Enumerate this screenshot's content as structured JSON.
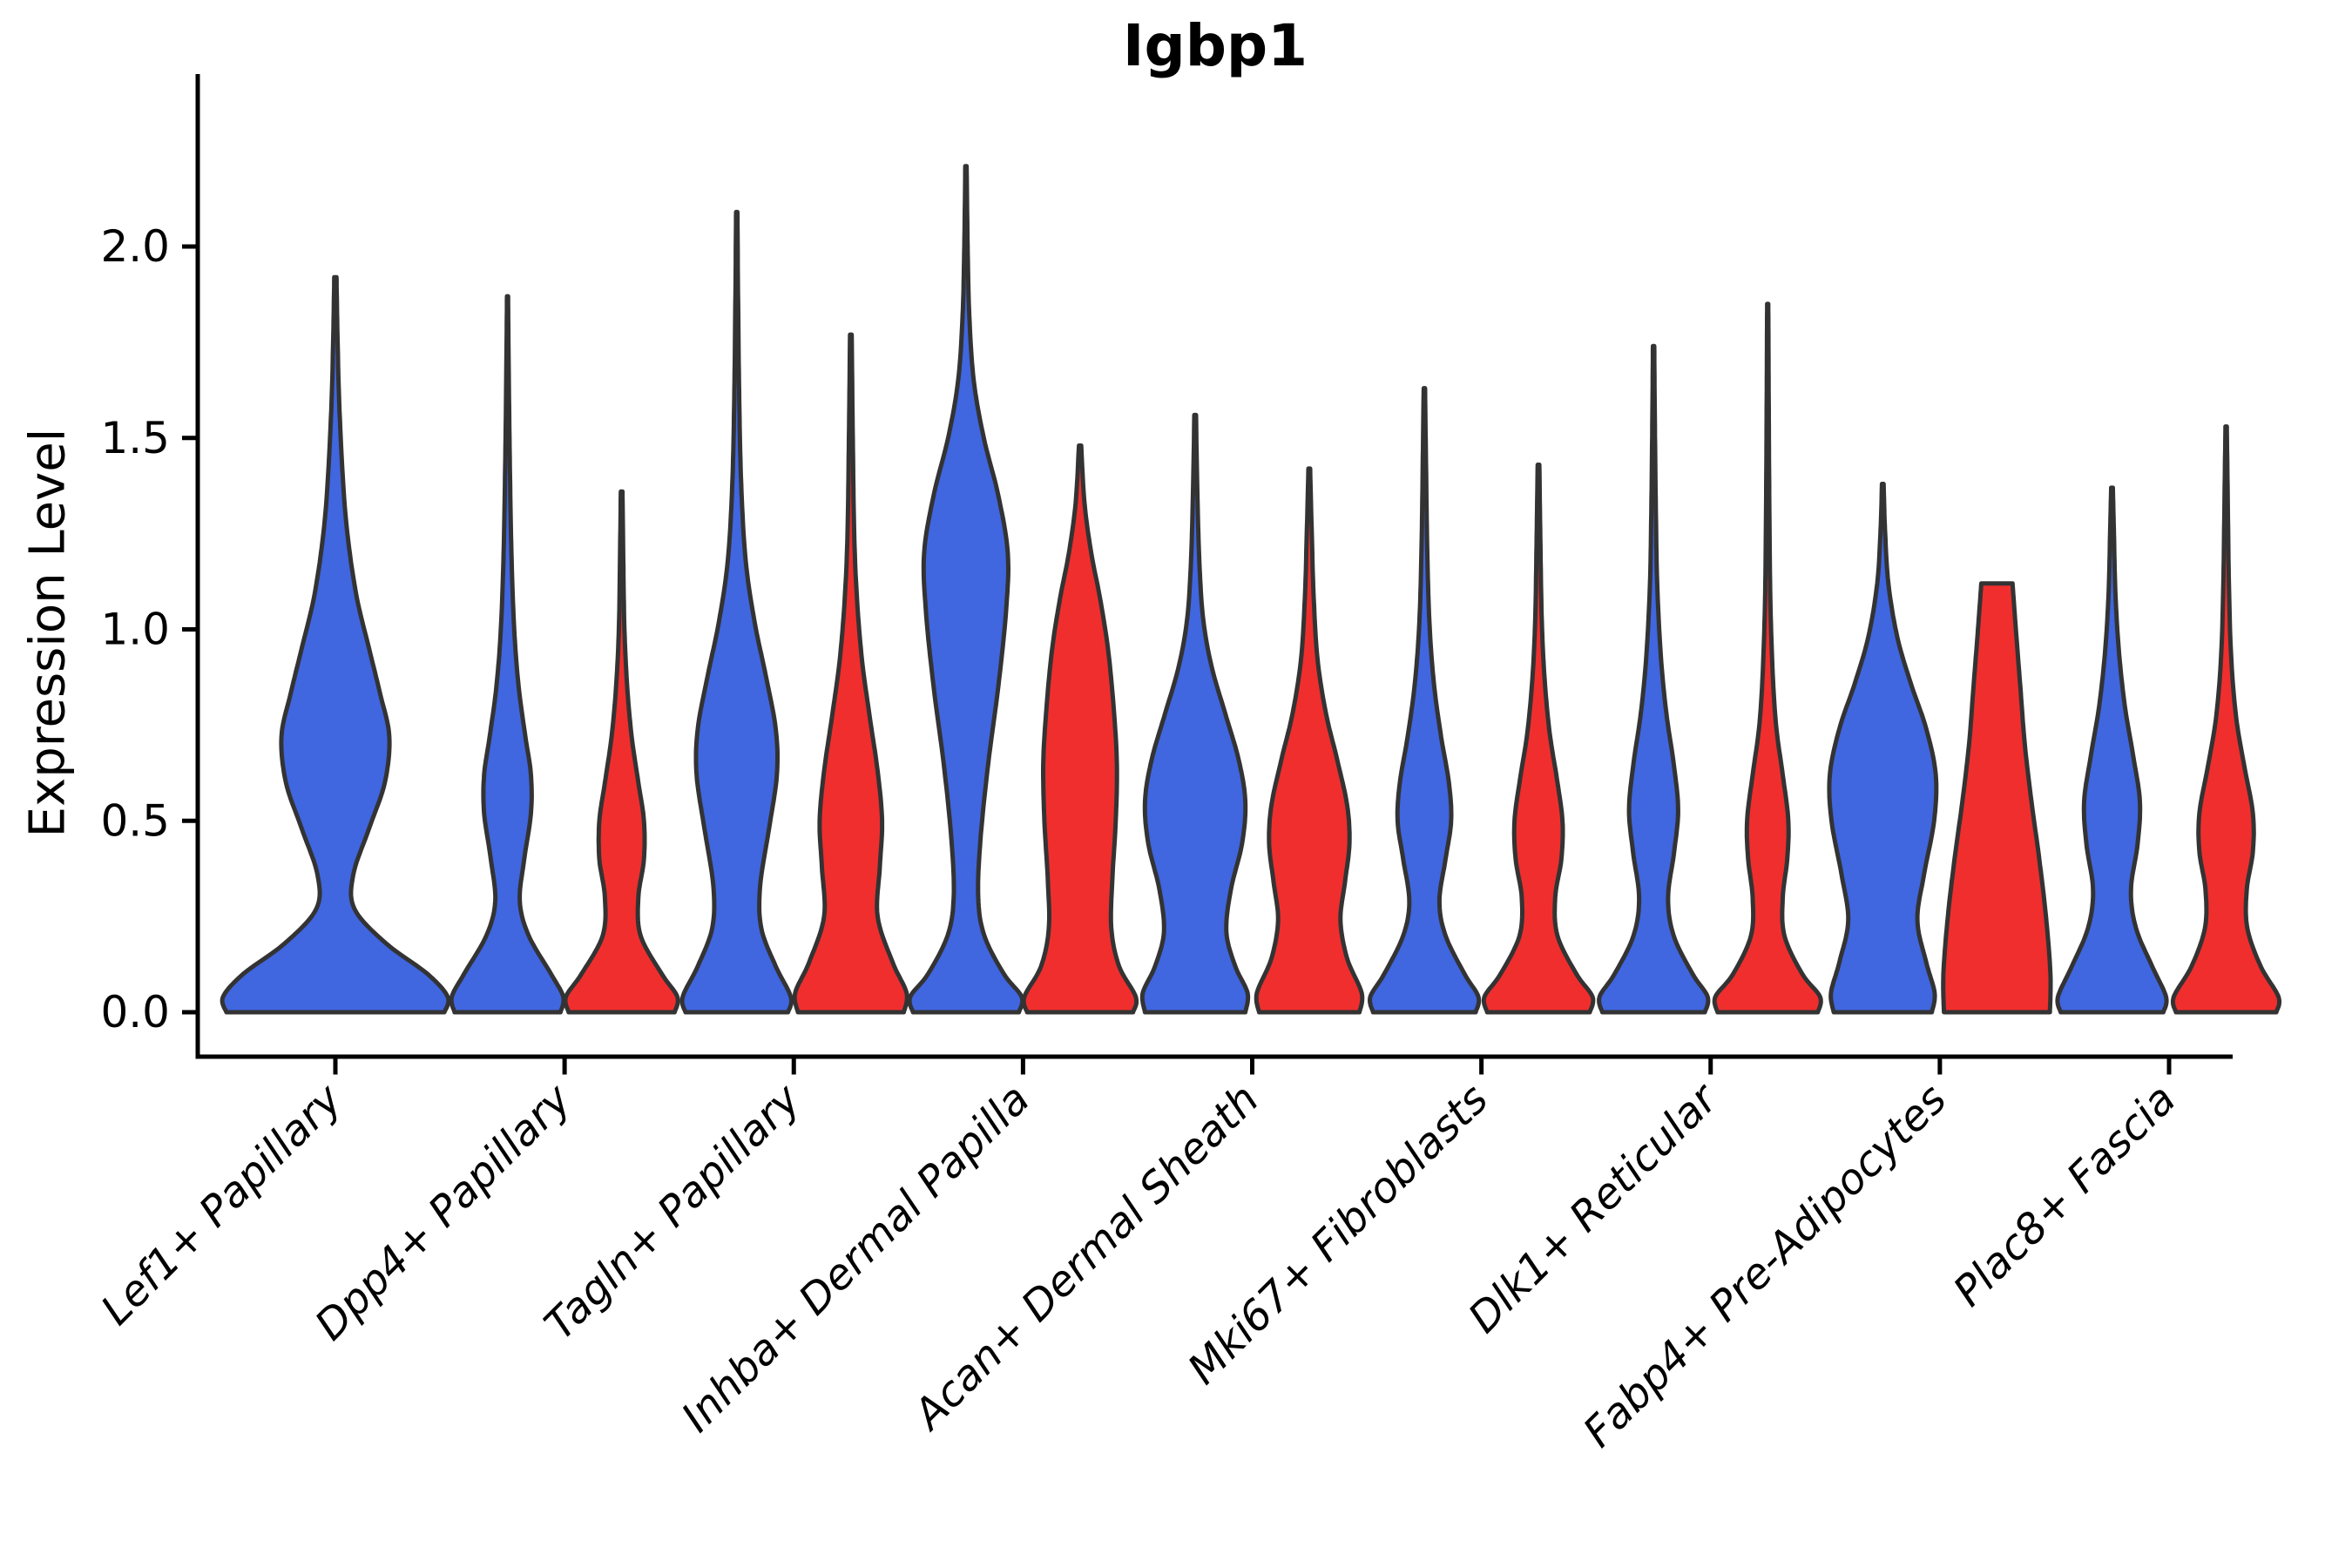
{
  "title": "Igbp1",
  "chart_data": {
    "type": "violin",
    "title": "Igbp1",
    "xlabel": "",
    "ylabel": "Expression Level",
    "legend": "none",
    "grid": false,
    "y_ticks": [
      "0.0",
      "0.5",
      "1.0",
      "1.5",
      "2.0"
    ],
    "y_tick_values": [
      0.0,
      0.5,
      1.0,
      1.5,
      2.0
    ],
    "ylim": [
      -0.11,
      2.45
    ],
    "categories": [
      "Lef1+ Papillary",
      "Dpp4+ Papillary",
      "Tagln+ Papillary",
      "Inhba+ Dermal Papilla",
      "Acan+ Dermal Sheath",
      "Mki67+ Fibroblasts",
      "Dlk1+ Reticular",
      "Fabp4+ Pre-Adipocytes",
      "Plac8+ Fascia"
    ],
    "colors": {
      "blue": "#4066E0",
      "red": "#F02E2E",
      "outline": "#333333",
      "axis": "#000000"
    },
    "series": [
      {
        "name": "blue",
        "max_expression": [
          1.92,
          1.87,
          2.09,
          2.21,
          1.56,
          1.63,
          1.74,
          1.38,
          1.37
        ]
      },
      {
        "name": "red",
        "max_expression": [
          null,
          1.36,
          1.77,
          1.48,
          1.42,
          1.43,
          1.85,
          1.12,
          1.53
        ]
      }
    ],
    "violins": [
      {
        "category_index": 0,
        "category": "Lef1+ Papillary",
        "side": "blue",
        "single": true,
        "max": 1.92,
        "profile": [
          [
            0,
            0.97
          ],
          [
            0.04,
            1.0
          ],
          [
            0.1,
            0.82
          ],
          [
            0.18,
            0.45
          ],
          [
            0.27,
            0.17
          ],
          [
            0.36,
            0.16
          ],
          [
            0.48,
            0.3
          ],
          [
            0.6,
            0.44
          ],
          [
            0.72,
            0.48
          ],
          [
            0.83,
            0.4
          ],
          [
            0.95,
            0.3
          ],
          [
            1.1,
            0.18
          ],
          [
            1.3,
            0.09
          ],
          [
            1.55,
            0.04
          ],
          [
            1.75,
            0.02
          ],
          [
            1.92,
            0.01
          ]
        ]
      },
      {
        "category_index": 1,
        "category": "Dpp4+ Papillary",
        "side": "blue",
        "max": 1.87,
        "profile": [
          [
            0,
            0.95
          ],
          [
            0.04,
            1.0
          ],
          [
            0.1,
            0.78
          ],
          [
            0.2,
            0.38
          ],
          [
            0.29,
            0.22
          ],
          [
            0.4,
            0.3
          ],
          [
            0.52,
            0.42
          ],
          [
            0.62,
            0.42
          ],
          [
            0.72,
            0.32
          ],
          [
            0.85,
            0.2
          ],
          [
            1.0,
            0.12
          ],
          [
            1.2,
            0.07
          ],
          [
            1.45,
            0.04
          ],
          [
            1.7,
            0.02
          ],
          [
            1.87,
            0.01
          ]
        ]
      },
      {
        "category_index": 1,
        "category": "Dpp4+ Papillary",
        "side": "red",
        "max": 1.36,
        "profile": [
          [
            0,
            0.95
          ],
          [
            0.04,
            1.0
          ],
          [
            0.1,
            0.72
          ],
          [
            0.2,
            0.34
          ],
          [
            0.3,
            0.3
          ],
          [
            0.4,
            0.4
          ],
          [
            0.5,
            0.4
          ],
          [
            0.6,
            0.3
          ],
          [
            0.72,
            0.18
          ],
          [
            0.85,
            0.1
          ],
          [
            1.0,
            0.05
          ],
          [
            1.18,
            0.03
          ],
          [
            1.36,
            0.015
          ]
        ]
      },
      {
        "category_index": 2,
        "category": "Tagln+ Papillary",
        "side": "blue",
        "max": 2.09,
        "profile": [
          [
            0,
            0.92
          ],
          [
            0.04,
            0.97
          ],
          [
            0.12,
            0.7
          ],
          [
            0.22,
            0.44
          ],
          [
            0.33,
            0.42
          ],
          [
            0.48,
            0.58
          ],
          [
            0.62,
            0.72
          ],
          [
            0.74,
            0.7
          ],
          [
            0.88,
            0.52
          ],
          [
            1.02,
            0.32
          ],
          [
            1.18,
            0.16
          ],
          [
            1.38,
            0.08
          ],
          [
            1.6,
            0.045
          ],
          [
            1.85,
            0.025
          ],
          [
            2.09,
            0.012
          ]
        ]
      },
      {
        "category_index": 2,
        "category": "Tagln+ Papillary",
        "side": "red",
        "max": 1.77,
        "profile": [
          [
            0,
            0.95
          ],
          [
            0.05,
            1.0
          ],
          [
            0.13,
            0.75
          ],
          [
            0.25,
            0.48
          ],
          [
            0.38,
            0.52
          ],
          [
            0.5,
            0.56
          ],
          [
            0.63,
            0.48
          ],
          [
            0.77,
            0.34
          ],
          [
            0.92,
            0.2
          ],
          [
            1.08,
            0.11
          ],
          [
            1.25,
            0.06
          ],
          [
            1.5,
            0.035
          ],
          [
            1.77,
            0.015
          ]
        ]
      },
      {
        "category_index": 3,
        "category": "Inhba+ Dermal Papilla",
        "side": "blue",
        "max": 2.21,
        "profile": [
          [
            0,
            0.95
          ],
          [
            0.04,
            1.0
          ],
          [
            0.1,
            0.68
          ],
          [
            0.2,
            0.33
          ],
          [
            0.3,
            0.22
          ],
          [
            0.45,
            0.26
          ],
          [
            0.65,
            0.4
          ],
          [
            0.85,
            0.58
          ],
          [
            1.05,
            0.72
          ],
          [
            1.2,
            0.75
          ],
          [
            1.35,
            0.58
          ],
          [
            1.5,
            0.32
          ],
          [
            1.65,
            0.14
          ],
          [
            1.82,
            0.06
          ],
          [
            2.0,
            0.03
          ],
          [
            2.21,
            0.012
          ]
        ]
      },
      {
        "category_index": 3,
        "category": "Inhba+ Dermal Papilla",
        "side": "red",
        "max": 1.48,
        "profile": [
          [
            0,
            0.95
          ],
          [
            0.04,
            1.0
          ],
          [
            0.12,
            0.7
          ],
          [
            0.22,
            0.56
          ],
          [
            0.35,
            0.58
          ],
          [
            0.5,
            0.64
          ],
          [
            0.65,
            0.66
          ],
          [
            0.8,
            0.6
          ],
          [
            0.95,
            0.5
          ],
          [
            1.08,
            0.36
          ],
          [
            1.2,
            0.2
          ],
          [
            1.33,
            0.08
          ],
          [
            1.48,
            0.02
          ]
        ]
      },
      {
        "category_index": 4,
        "category": "Acan+ Dermal Sheath",
        "side": "blue",
        "max": 1.56,
        "profile": [
          [
            0,
            0.9
          ],
          [
            0.05,
            0.94
          ],
          [
            0.12,
            0.72
          ],
          [
            0.21,
            0.56
          ],
          [
            0.32,
            0.64
          ],
          [
            0.44,
            0.84
          ],
          [
            0.55,
            0.9
          ],
          [
            0.66,
            0.78
          ],
          [
            0.78,
            0.54
          ],
          [
            0.9,
            0.3
          ],
          [
            1.02,
            0.15
          ],
          [
            1.16,
            0.08
          ],
          [
            1.35,
            0.04
          ],
          [
            1.56,
            0.015
          ]
        ]
      },
      {
        "category_index": 4,
        "category": "Acan+ Dermal Sheath",
        "side": "red",
        "max": 1.42,
        "profile": [
          [
            0,
            0.9
          ],
          [
            0.05,
            0.94
          ],
          [
            0.14,
            0.68
          ],
          [
            0.24,
            0.56
          ],
          [
            0.34,
            0.64
          ],
          [
            0.44,
            0.72
          ],
          [
            0.54,
            0.68
          ],
          [
            0.66,
            0.5
          ],
          [
            0.78,
            0.3
          ],
          [
            0.92,
            0.15
          ],
          [
            1.08,
            0.08
          ],
          [
            1.25,
            0.045
          ],
          [
            1.42,
            0.015
          ]
        ]
      },
      {
        "category_index": 5,
        "category": "Mki67+ Fibroblasts",
        "side": "blue",
        "max": 1.63,
        "profile": [
          [
            0,
            0.92
          ],
          [
            0.04,
            0.97
          ],
          [
            0.1,
            0.72
          ],
          [
            0.2,
            0.38
          ],
          [
            0.29,
            0.27
          ],
          [
            0.4,
            0.38
          ],
          [
            0.5,
            0.48
          ],
          [
            0.6,
            0.44
          ],
          [
            0.72,
            0.3
          ],
          [
            0.86,
            0.17
          ],
          [
            1.02,
            0.09
          ],
          [
            1.22,
            0.05
          ],
          [
            1.45,
            0.028
          ],
          [
            1.63,
            0.012
          ]
        ]
      },
      {
        "category_index": 5,
        "category": "Mki67+ Fibroblasts",
        "side": "red",
        "max": 1.43,
        "profile": [
          [
            0,
            0.92
          ],
          [
            0.04,
            0.97
          ],
          [
            0.1,
            0.68
          ],
          [
            0.2,
            0.34
          ],
          [
            0.3,
            0.3
          ],
          [
            0.4,
            0.41
          ],
          [
            0.5,
            0.43
          ],
          [
            0.61,
            0.33
          ],
          [
            0.73,
            0.2
          ],
          [
            0.87,
            0.11
          ],
          [
            1.02,
            0.06
          ],
          [
            1.22,
            0.035
          ],
          [
            1.43,
            0.015
          ]
        ]
      },
      {
        "category_index": 6,
        "category": "Dlk1+ Reticular",
        "side": "blue",
        "max": 1.74,
        "profile": [
          [
            0,
            0.92
          ],
          [
            0.04,
            0.97
          ],
          [
            0.1,
            0.7
          ],
          [
            0.2,
            0.36
          ],
          [
            0.3,
            0.26
          ],
          [
            0.42,
            0.37
          ],
          [
            0.53,
            0.44
          ],
          [
            0.65,
            0.36
          ],
          [
            0.78,
            0.23
          ],
          [
            0.93,
            0.13
          ],
          [
            1.12,
            0.065
          ],
          [
            1.32,
            0.04
          ],
          [
            1.55,
            0.022
          ],
          [
            1.74,
            0.012
          ]
        ]
      },
      {
        "category_index": 6,
        "category": "Dlk1+ Reticular",
        "side": "red",
        "max": 1.85,
        "profile": [
          [
            0,
            0.9
          ],
          [
            0.04,
            0.94
          ],
          [
            0.1,
            0.62
          ],
          [
            0.2,
            0.3
          ],
          [
            0.3,
            0.27
          ],
          [
            0.4,
            0.35
          ],
          [
            0.5,
            0.37
          ],
          [
            0.62,
            0.27
          ],
          [
            0.75,
            0.15
          ],
          [
            0.9,
            0.085
          ],
          [
            1.1,
            0.045
          ],
          [
            1.35,
            0.028
          ],
          [
            1.6,
            0.018
          ],
          [
            1.85,
            0.01
          ]
        ]
      },
      {
        "category_index": 7,
        "category": "Fabp4+ Pre-Adipocytes",
        "side": "blue",
        "max": 1.38,
        "profile": [
          [
            0,
            0.88
          ],
          [
            0.05,
            0.93
          ],
          [
            0.13,
            0.78
          ],
          [
            0.24,
            0.62
          ],
          [
            0.36,
            0.74
          ],
          [
            0.5,
            0.92
          ],
          [
            0.62,
            0.95
          ],
          [
            0.74,
            0.78
          ],
          [
            0.86,
            0.5
          ],
          [
            0.98,
            0.26
          ],
          [
            1.12,
            0.1
          ],
          [
            1.26,
            0.04
          ],
          [
            1.38,
            0.015
          ]
        ]
      },
      {
        "category_index": 7,
        "category": "Fabp4+ Pre-Adipocytes",
        "side": "red",
        "max": 1.12,
        "flat_top": true,
        "profile": [
          [
            0,
            0.95
          ],
          [
            0.1,
            0.96
          ],
          [
            0.25,
            0.88
          ],
          [
            0.4,
            0.76
          ],
          [
            0.55,
            0.62
          ],
          [
            0.7,
            0.5
          ],
          [
            0.85,
            0.42
          ],
          [
            1.0,
            0.34
          ],
          [
            1.12,
            0.28
          ]
        ]
      },
      {
        "category_index": 8,
        "category": "Plac8+ Fascia",
        "side": "blue",
        "max": 1.37,
        "profile": [
          [
            0,
            0.92
          ],
          [
            0.04,
            0.97
          ],
          [
            0.12,
            0.72
          ],
          [
            0.22,
            0.43
          ],
          [
            0.32,
            0.34
          ],
          [
            0.44,
            0.46
          ],
          [
            0.55,
            0.5
          ],
          [
            0.67,
            0.38
          ],
          [
            0.8,
            0.23
          ],
          [
            0.95,
            0.12
          ],
          [
            1.1,
            0.06
          ],
          [
            1.25,
            0.035
          ],
          [
            1.37,
            0.015
          ]
        ]
      },
      {
        "category_index": 8,
        "category": "Plac8+ Fascia",
        "side": "red",
        "max": 1.53,
        "profile": [
          [
            0,
            0.9
          ],
          [
            0.04,
            0.94
          ],
          [
            0.12,
            0.62
          ],
          [
            0.22,
            0.38
          ],
          [
            0.32,
            0.37
          ],
          [
            0.42,
            0.48
          ],
          [
            0.52,
            0.48
          ],
          [
            0.64,
            0.33
          ],
          [
            0.77,
            0.18
          ],
          [
            0.93,
            0.09
          ],
          [
            1.12,
            0.05
          ],
          [
            1.33,
            0.03
          ],
          [
            1.53,
            0.012
          ]
        ]
      }
    ]
  }
}
